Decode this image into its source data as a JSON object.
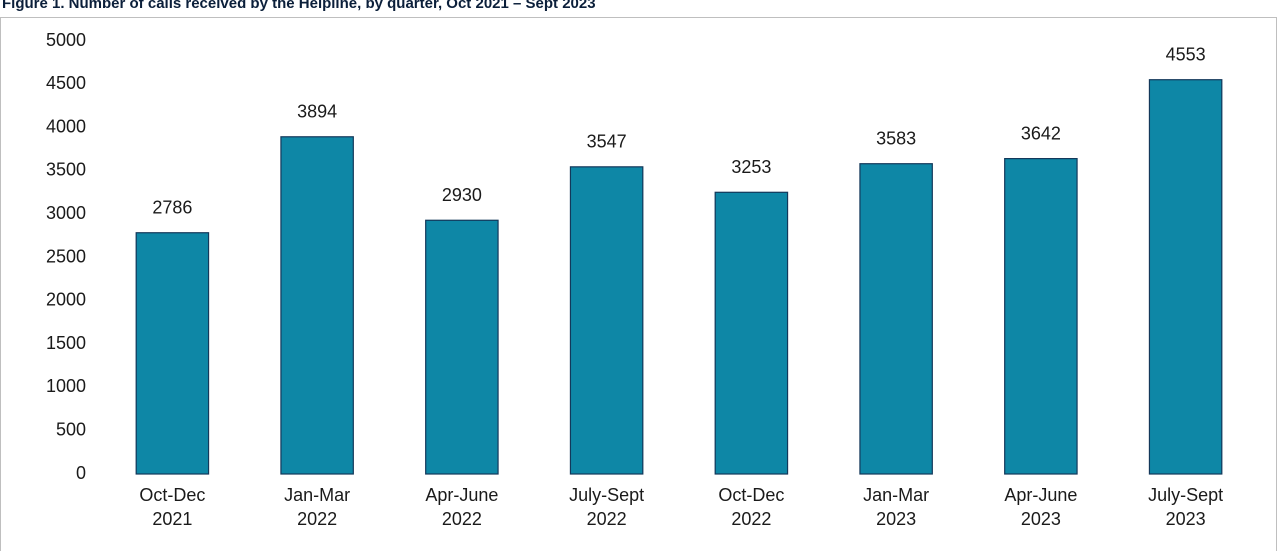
{
  "chart_data": {
    "type": "bar",
    "title": "Figure 1. Number of calls received by the Helpline, by quarter, Oct 2021 – Sept 2023",
    "categories": [
      [
        "Oct-Dec",
        "2021"
      ],
      [
        "Jan-Mar",
        "2022"
      ],
      [
        "Apr-June",
        "2022"
      ],
      [
        "July-Sept",
        "2022"
      ],
      [
        "Oct-Dec",
        "2022"
      ],
      [
        "Jan-Mar",
        "2023"
      ],
      [
        "Apr-June",
        "2023"
      ],
      [
        "July-Sept",
        "2023"
      ]
    ],
    "values": [
      2786,
      3894,
      2930,
      3547,
      3253,
      3583,
      3642,
      4553
    ],
    "color": "#0e87a6",
    "ylim": [
      0,
      5000
    ],
    "yticks": [
      0,
      500,
      1000,
      1500,
      2000,
      2500,
      3000,
      3500,
      4000,
      4500,
      5000
    ],
    "grid": false
  }
}
